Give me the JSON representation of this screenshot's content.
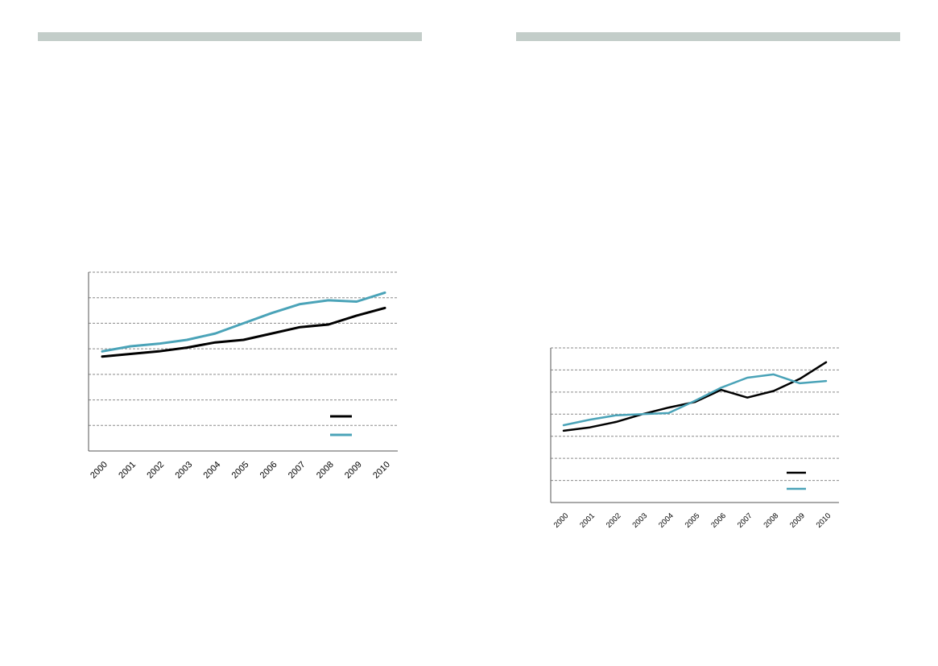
{
  "colors": {
    "header_bar": "#c3cdc9",
    "series_1": "#000000",
    "series_2": "#4aa3b8",
    "grid": "#8a8a8a",
    "axis": "#555555"
  },
  "chart_data": [
    {
      "type": "line",
      "title": "",
      "xlabel": "",
      "ylabel": "",
      "categories": [
        "2000",
        "2001",
        "2002",
        "2003",
        "2004",
        "2005",
        "2006",
        "2007",
        "2008",
        "2009",
        "2010"
      ],
      "ylim": [
        0,
        7
      ],
      "grid": true,
      "legend_position": "bottom-right",
      "series": [
        {
          "color": "#000000",
          "values": [
            3.7,
            3.8,
            3.9,
            4.05,
            4.25,
            4.35,
            4.6,
            4.85,
            4.95,
            5.3,
            5.6
          ]
        },
        {
          "color": "#4aa3b8",
          "values": [
            3.9,
            4.1,
            4.2,
            4.35,
            4.6,
            5.0,
            5.4,
            5.75,
            5.9,
            5.85,
            6.2
          ]
        }
      ]
    },
    {
      "type": "line",
      "title": "",
      "xlabel": "",
      "ylabel": "",
      "categories": [
        "2000",
        "2001",
        "2002",
        "2003",
        "2004",
        "2005",
        "2006",
        "2007",
        "2008",
        "2009",
        "2010"
      ],
      "ylim": [
        0,
        7
      ],
      "grid": true,
      "legend_position": "bottom-right",
      "series": [
        {
          "color": "#000000",
          "values": [
            3.25,
            3.4,
            3.65,
            4.0,
            4.3,
            4.55,
            5.1,
            4.75,
            5.05,
            5.6,
            6.35
          ]
        },
        {
          "color": "#4aa3b8",
          "values": [
            3.5,
            3.75,
            3.95,
            4.0,
            4.05,
            4.6,
            5.2,
            5.65,
            5.8,
            5.4,
            5.5
          ]
        }
      ]
    }
  ]
}
